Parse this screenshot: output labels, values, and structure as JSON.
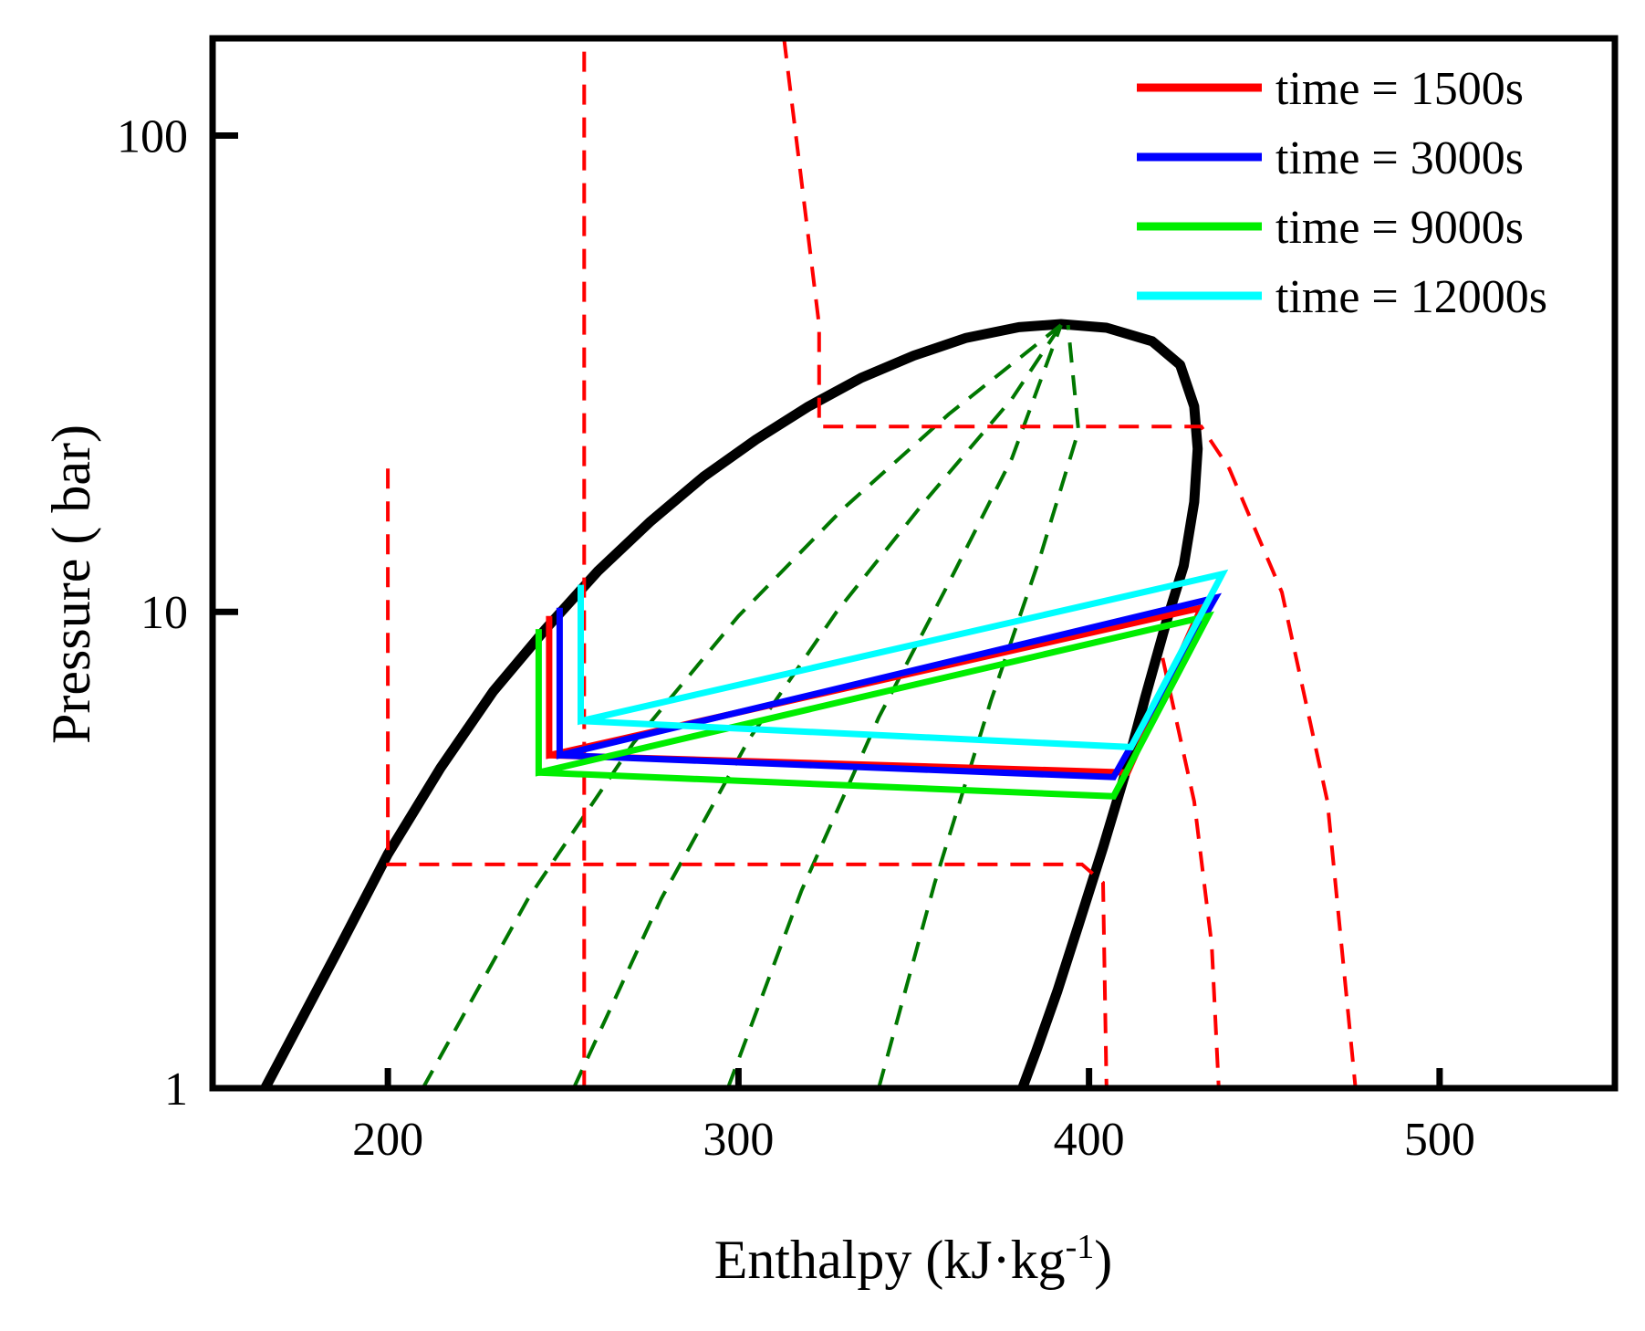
{
  "chart_data": {
    "type": "line",
    "title": "",
    "xlabel": "Enthalpy (kJ·kg",
    "xlabel_sup": "-1",
    "xlabel_close": ")",
    "ylabel": "Pressure ( bar)",
    "xlim": [
      150,
      550
    ],
    "ylim": [
      1,
      160
    ],
    "yscale": "log",
    "x_ticks": [
      200,
      300,
      400,
      500
    ],
    "x_tick_labels": [
      "200",
      "300",
      "400",
      "500"
    ],
    "y_ticks": [
      1,
      10,
      100
    ],
    "y_tick_labels": [
      "1",
      "10",
      "100"
    ],
    "legend_position": "top-right",
    "series": [
      {
        "name": "time = 1500s",
        "color": "#ff0000",
        "x": [
          246,
          246,
          432,
          411,
          246
        ],
        "y": [
          9.8,
          5.0,
          10.2,
          4.6,
          5.0
        ]
      },
      {
        "name": "time = 3000s",
        "color": "#0000ff",
        "x": [
          249,
          249,
          436,
          407,
          249
        ],
        "y": [
          10.2,
          5.0,
          10.7,
          4.5,
          5.0
        ]
      },
      {
        "name": "time = 9000s",
        "color": "#00ee00",
        "x": [
          243,
          243,
          434,
          407,
          243
        ],
        "y": [
          9.2,
          4.6,
          9.8,
          4.1,
          4.6
        ]
      },
      {
        "name": "time = 12000s",
        "color": "#00ffff",
        "x": [
          255,
          255,
          438,
          412,
          255
        ],
        "y": [
          11.4,
          5.9,
          12.0,
          5.2,
          5.9
        ]
      }
    ],
    "saturation_dome": {
      "color": "#000000",
      "x": [
        165,
        185,
        200,
        215,
        230,
        245,
        260,
        275,
        290,
        305,
        320,
        335,
        350,
        365,
        380,
        392,
        405,
        418,
        426,
        430,
        431,
        430,
        427,
        422,
        416,
        410,
        404,
        397,
        391,
        385,
        381
      ],
      "y": [
        1.0,
        1.9,
        3.1,
        4.7,
        6.8,
        9.2,
        12.2,
        15.5,
        19.2,
        23.0,
        27.0,
        31.0,
        34.5,
        37.6,
        39.6,
        40.2,
        39.5,
        37.0,
        33.0,
        27.0,
        22.0,
        17.0,
        12.5,
        9.5,
        6.6,
        4.5,
        3.2,
        2.2,
        1.6,
        1.2,
        1.0
      ]
    },
    "quality_lines": {
      "color": "#007700",
      "lines": [
        {
          "x": [
            210,
            240,
            270,
            300,
            330,
            360,
            392
          ],
          "y": [
            1.0,
            2.5,
            5.3,
            9.8,
            16.5,
            26.0,
            40.0
          ]
        },
        {
          "x": [
            253,
            278,
            303,
            328,
            353,
            378,
            392
          ],
          "y": [
            1.0,
            2.5,
            5.4,
            10.0,
            17.0,
            28.0,
            40.0
          ]
        },
        {
          "x": [
            297,
            318,
            340,
            360,
            378,
            392
          ],
          "y": [
            1.0,
            2.6,
            6.0,
            11.5,
            21.0,
            40.0
          ]
        },
        {
          "x": [
            340,
            356,
            372,
            386,
            397,
            394
          ],
          "y": [
            1.0,
            2.7,
            6.5,
            13.0,
            24.0,
            40.0
          ]
        }
      ]
    },
    "isotherms": {
      "color": "#ff0000",
      "lines": [
        {
          "x": [
            200,
            200,
            398,
            404,
            405
          ],
          "y": [
            20.0,
            2.95,
            2.95,
            2.7,
            1.0
          ]
        },
        {
          "x": [
            256,
            256
          ],
          "y": [
            150.0,
            1.0
          ]
        },
        {
          "x": [
            313,
            323,
            323,
            432,
            440,
            455,
            468,
            476
          ],
          "y": [
            160.0,
            40.0,
            24.5,
            24.5,
            20.0,
            11.0,
            4.0,
            1.0
          ]
        },
        {
          "x": [
            421,
            430,
            435,
            437
          ],
          "y": [
            8.0,
            4.0,
            2.0,
            1.0
          ]
        }
      ]
    }
  }
}
